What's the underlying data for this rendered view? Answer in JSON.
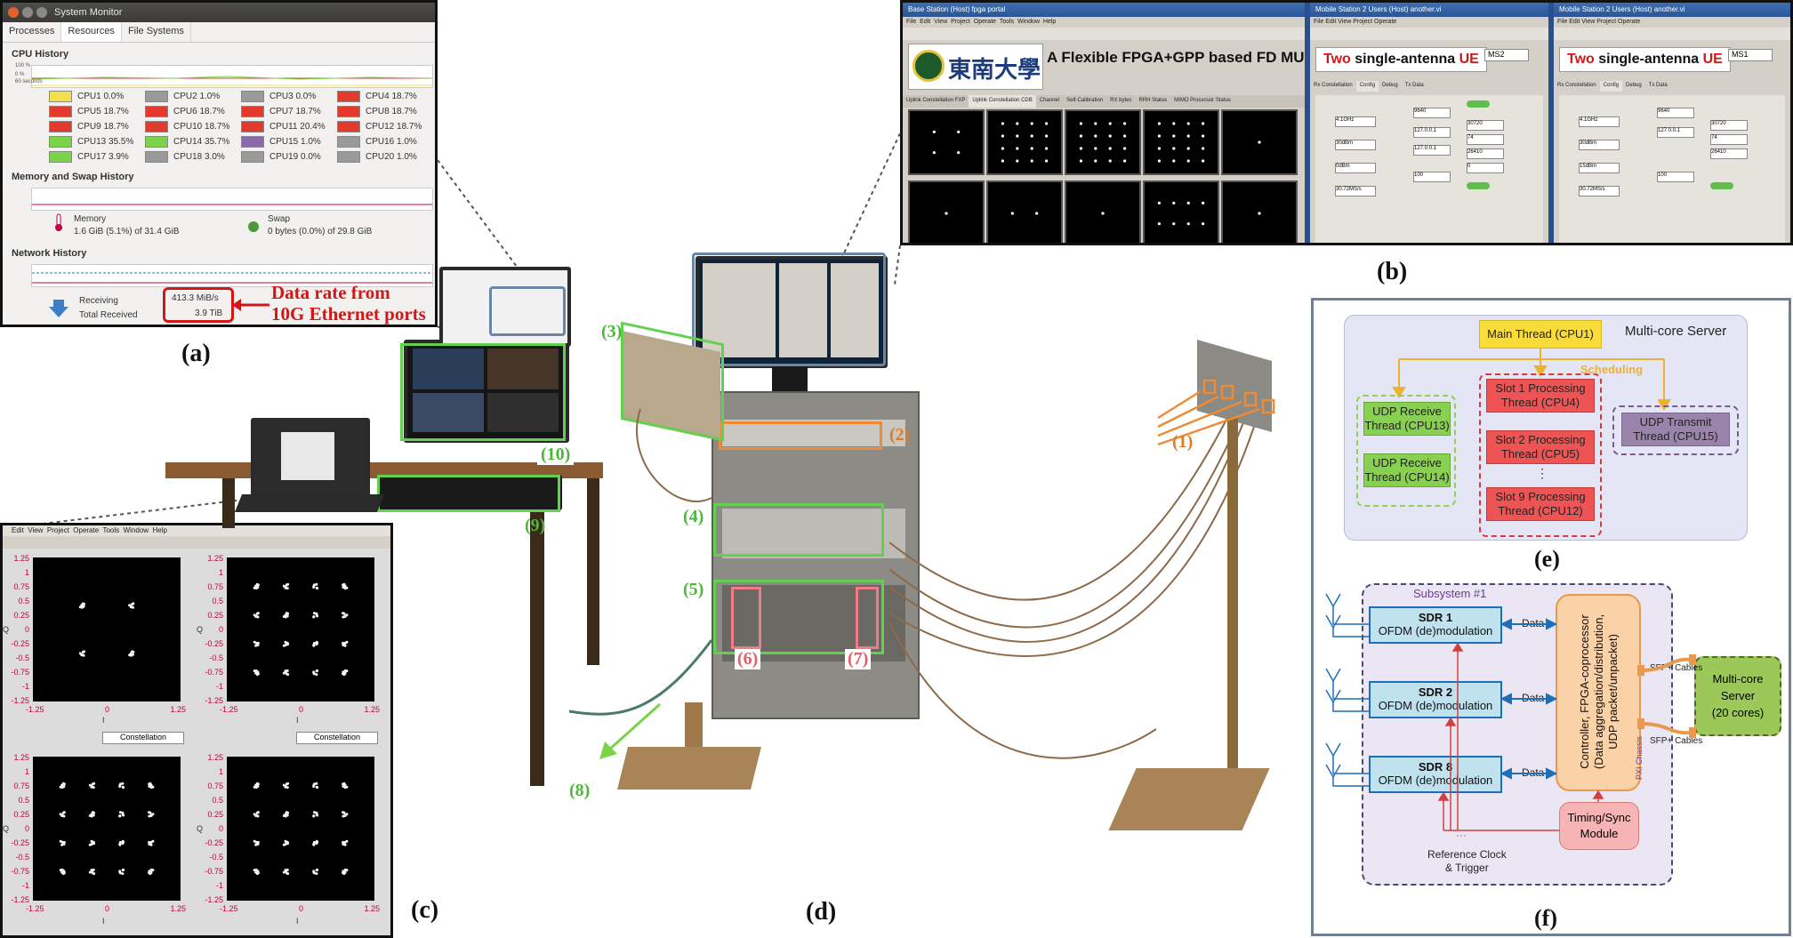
{
  "captions": {
    "a": "(a)",
    "b": "(b)",
    "c": "(c)",
    "d": "(d)",
    "e": "(e)",
    "f": "(f)"
  },
  "sysmon": {
    "window_title": "System Monitor",
    "tabs": [
      "Processes",
      "Resources",
      "File Systems"
    ],
    "cpu_history_label": "CPU History",
    "cpu_axis": [
      "100 %",
      "0 %",
      "60 seconds"
    ],
    "cpus": [
      {
        "name": "CPU1",
        "value": "0.0%",
        "color": "#f4e04a"
      },
      {
        "name": "CPU2",
        "value": "1.0%",
        "color": "#9a9a9a"
      },
      {
        "name": "CPU3",
        "value": "0.0%",
        "color": "#9a9a9a"
      },
      {
        "name": "CPU4",
        "value": "18.7%",
        "color": "#e23a2c"
      },
      {
        "name": "CPU5",
        "value": "18.7%",
        "color": "#e23a2c"
      },
      {
        "name": "CPU6",
        "value": "18.7%",
        "color": "#e23a2c"
      },
      {
        "name": "CPU7",
        "value": "18.7%",
        "color": "#e23a2c"
      },
      {
        "name": "CPU8",
        "value": "18.7%",
        "color": "#e23a2c"
      },
      {
        "name": "CPU9",
        "value": "18.7%",
        "color": "#e23a2c"
      },
      {
        "name": "CPU10",
        "value": "18.7%",
        "color": "#e23a2c"
      },
      {
        "name": "CPU11",
        "value": "20.4%",
        "color": "#e23a2c"
      },
      {
        "name": "CPU12",
        "value": "18.7%",
        "color": "#e23a2c"
      },
      {
        "name": "CPU13",
        "value": "35.5%",
        "color": "#7bd34a"
      },
      {
        "name": "CPU14",
        "value": "35.7%",
        "color": "#7bd34a"
      },
      {
        "name": "CPU15",
        "value": "1.0%",
        "color": "#8a6aa8"
      },
      {
        "name": "CPU16",
        "value": "1.0%",
        "color": "#9a9a9a"
      },
      {
        "name": "CPU17",
        "value": "3.9%",
        "color": "#7bd34a"
      },
      {
        "name": "CPU18",
        "value": "3.0%",
        "color": "#9a9a9a"
      },
      {
        "name": "CPU19",
        "value": "0.0%",
        "color": "#9a9a9a"
      },
      {
        "name": "CPU20",
        "value": "1.0%",
        "color": "#9a9a9a"
      }
    ],
    "memory_history_label": "Memory and Swap History",
    "memory_label": "Memory",
    "memory_value": "1.6 GiB (5.1%) of 31.4 GiB",
    "swap_label": "Swap",
    "swap_value": "0 bytes (0.0%) of 29.8 GiB",
    "network_history_label": "Network History",
    "receiving_label": "Receiving",
    "receiving_value": "413.3 MiB/s",
    "total_received_label": "Total Received",
    "total_received_value": "3.9 TiB",
    "annotation_line1": "Data rate from",
    "annotation_line2": "10G Ethernet ports"
  },
  "labview": {
    "window1_title": "Base Station (Host) fpga portal",
    "menu": [
      "File",
      "Edit",
      "View",
      "Project",
      "Operate",
      "Tools",
      "Window",
      "Help"
    ],
    "banner_logo_text": "東南大學",
    "banner_title": "A Flexible FPGA+GPP based FD MU MI",
    "tabs1": [
      "Uplink Constellation FXP",
      "Uplink Constellation CDB",
      "Channel",
      "Self-Calibration",
      "RX bytes",
      "RRH Status",
      "MIMO Processor Status"
    ],
    "window2_title": "Mobile Station 2 Users (Host) another.vi",
    "window3_title": "Mobile Station 2 Users (Host) another.vi",
    "ue_title_red": "Two",
    "ue_title_mid": "single-antenna",
    "ue_title_tail": "UE",
    "ue_id_ms2": "MS2",
    "ue_id_ms1": "MS1",
    "tabs2": [
      "Rx Constellation",
      "Config",
      "Debug",
      "Tx Data"
    ],
    "fields": {
      "frequency": "4.1GHz",
      "frequency_b": "4.1GHz",
      "ref_level": "30dBm",
      "output_power": "0dBm",
      "output_power_b": "15dBm",
      "sample_rate": "30.72MS/s",
      "mtu": "9640",
      "tx_ip": "127.0.0.1",
      "rx_ip": "127.0.0.1",
      "subframe": "30720",
      "rx_frame": "74",
      "rx_sync": "26410",
      "tx_timing": "0",
      "uplink_seed": "100"
    }
  },
  "constellation": {
    "menu": [
      "Edit",
      "View",
      "Project",
      "Operate",
      "Tools",
      "Window",
      "Help"
    ],
    "plot_label": "Constellation",
    "y_ticks": [
      "1.25",
      "1",
      "0.75",
      "0.5",
      "0.25",
      "0",
      "-0.25",
      "-0.5",
      "-0.75",
      "-1",
      "-1.25"
    ],
    "x_ticks": [
      "-1.25",
      "0",
      "1.25"
    ],
    "y_axis": "Q",
    "x_axis": "I"
  },
  "photo_labels": {
    "l1": "(1)",
    "l2": "(2)",
    "l3": "(3)",
    "l4": "(4)",
    "l5": "(5)",
    "l6": "(6)",
    "l7": "(7)",
    "l8": "(8)",
    "l9": "(9)",
    "l10": "(10)"
  },
  "diagram_e": {
    "title": "Multi-core Server",
    "main_thread": "Main Thread (CPU1)",
    "scheduling": "Scheduling",
    "udp_recv_1": "UDP Receive Thread (CPU13)",
    "udp_recv_2": "UDP Receive Thread (CPU14)",
    "slot1": "Slot 1 Processing Thread (CPU4)",
    "slot2": "Slot 2 Processing Thread (CPU5)",
    "slot_dots": "⋮",
    "slot9": "Slot 9 Processing Thread (CPU12)",
    "udp_tx": "UDP Transmit Thread (CPU15)"
  },
  "diagram_f": {
    "subsystem": "Subsystem #1",
    "sdr1": "SDR 1",
    "sdr2": "SDR 2",
    "sdr8": "SDR 8",
    "ofdm": "OFDM (de)modulation",
    "data": "Data",
    "controller_l1": "Controller, FPGA-coprocessor",
    "controller_l2": "(Data aggregation/distribution,",
    "controller_l3": "UDP packet/unpacket)",
    "pxi": "PXI Chassis",
    "sfp1": "SFP+ Cables",
    "sfp2": "SFP+ Cables",
    "server_l1": "Multi-core",
    "server_l2": "Server",
    "server_l3": "(20 cores)",
    "timing_l1": "Timing/Sync",
    "timing_l2": "Module",
    "ref_l1": "Reference Clock",
    "ref_l2": "& Trigger",
    "dots": "···"
  }
}
